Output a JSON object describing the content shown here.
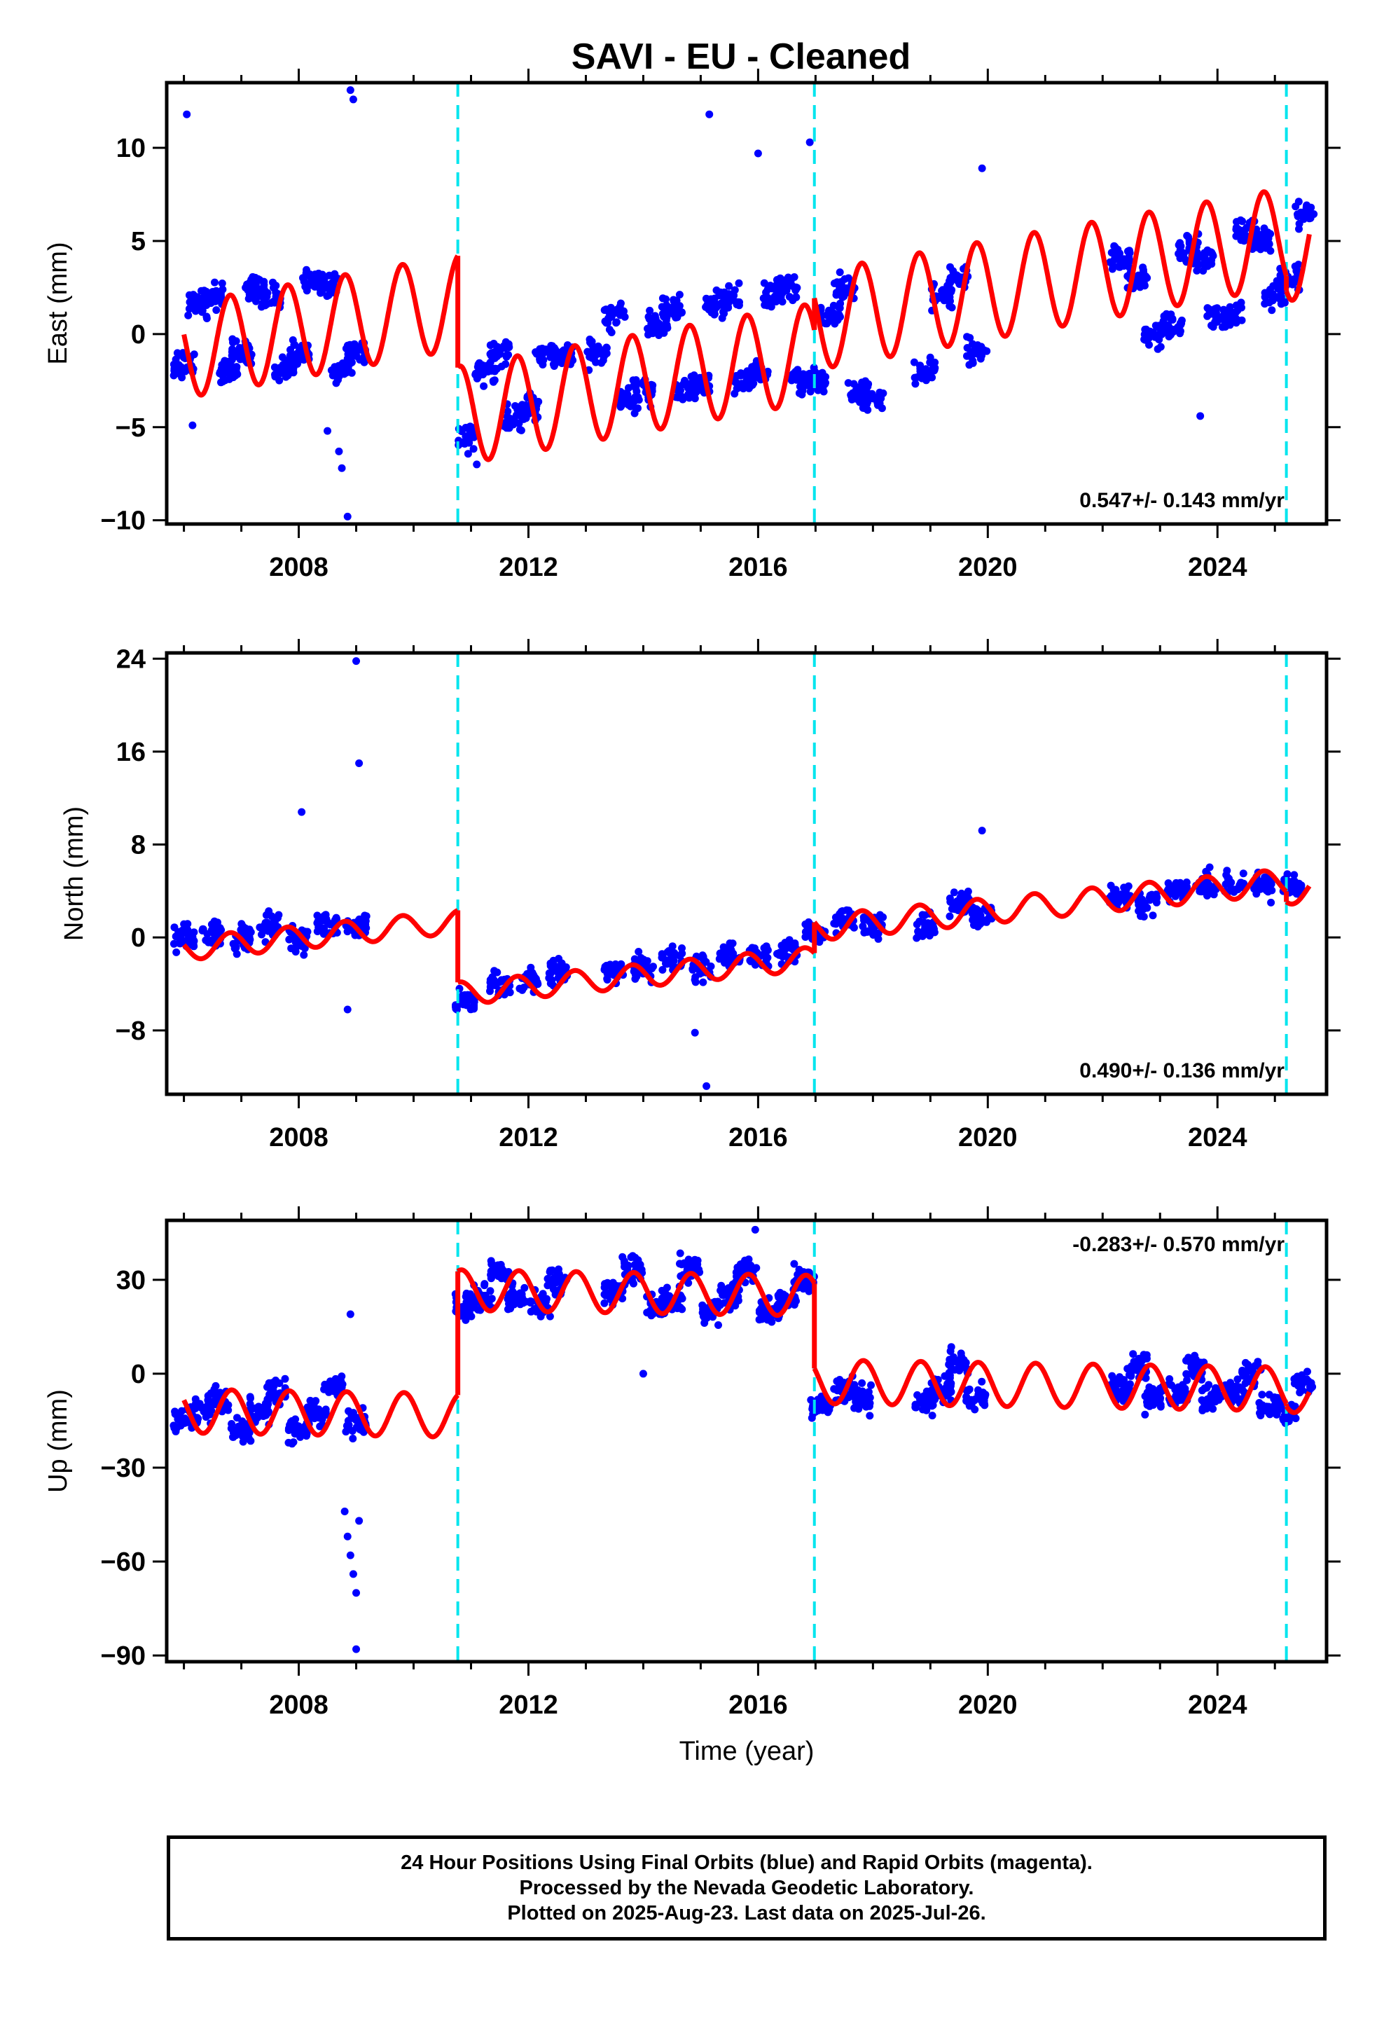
{
  "title": "SAVI  - EU - Cleaned",
  "footer": {
    "line1": "24 Hour Positions Using Final Orbits (blue) and Rapid Orbits (magenta).",
    "line2": "Processed by the Nevada Geodetic Laboratory.",
    "line3": "Plotted on 2025-Aug-23. Last data on 2025-Jul-26."
  },
  "colors": {
    "data": "#0000ff",
    "model": "#ff0000",
    "offsets": "#00e5ee",
    "axes": "#000000"
  },
  "chart_data": [
    {
      "type": "scatter",
      "xlabel": "",
      "ylabel": "East (mm)",
      "xlim": [
        2005.7,
        2025.9
      ],
      "ylim": [
        -10.2,
        13.5
      ],
      "xticks": [
        2008,
        2012,
        2016,
        2020,
        2024
      ],
      "yticks": [
        -10,
        -5,
        0,
        5,
        10
      ],
      "rate_text": "0.547+/- 0.143 mm/yr",
      "rate_position": "bottom-right",
      "offset_epochs": [
        2010.77,
        2016.98,
        2025.2
      ],
      "series": [
        {
          "role": "observations",
          "x": [
            2006.0,
            2006.25,
            2006.5,
            2006.75,
            2007.0,
            2007.25,
            2007.5,
            2007.75,
            2008.0,
            2008.25,
            2008.5,
            2008.75,
            2009.0,
            2010.9,
            2011.25,
            2011.5,
            2011.75,
            2012.0,
            2012.3,
            2012.6,
            2013.2,
            2013.5,
            2013.75,
            2014.0,
            2014.25,
            2014.5,
            2014.75,
            2015.0,
            2015.25,
            2015.5,
            2015.75,
            2016.0,
            2016.25,
            2016.5,
            2016.75,
            2017.0,
            2017.25,
            2017.5,
            2017.75,
            2018.0,
            2018.9,
            2019.2,
            2019.5,
            2019.8,
            2022.3,
            2022.6,
            2022.9,
            2023.2,
            2023.5,
            2023.75,
            2024.0,
            2024.25,
            2024.5,
            2024.75,
            2025.0,
            2025.25,
            2025.5
          ],
          "y": [
            -1.5,
            1.5,
            2.0,
            -2.0,
            -1.0,
            2.5,
            2.0,
            -2.0,
            -1.0,
            2.8,
            2.5,
            -2.0,
            -1.0,
            -5.5,
            -2.0,
            -1.0,
            -4.5,
            -4.0,
            -1.0,
            -1.0,
            -1.0,
            1.0,
            -3.5,
            -3.0,
            0.5,
            1.5,
            -3.0,
            -2.5,
            1.5,
            2.0,
            -2.5,
            -2.0,
            2.0,
            2.5,
            -2.5,
            -2.5,
            1.0,
            2.5,
            -3.0,
            -3.5,
            -2.0,
            2.0,
            3.0,
            -1.0,
            4.0,
            3.0,
            0.0,
            0.5,
            4.5,
            4.0,
            1.0,
            1.0,
            5.5,
            5.0,
            2.0,
            3.0,
            6.5
          ]
        },
        {
          "role": "outliers",
          "x": [
            2006.05,
            2006.15,
            2008.5,
            2008.7,
            2008.75,
            2008.85,
            2008.9,
            2008.95,
            2011.1,
            2015.15,
            2016.0,
            2016.9,
            2019.9,
            2023.7
          ],
          "y": [
            11.8,
            -4.9,
            -5.2,
            -6.3,
            -7.2,
            -9.8,
            13.1,
            12.6,
            -7.0,
            11.8,
            9.7,
            10.3,
            8.9,
            -4.4
          ]
        },
        {
          "role": "model",
          "start": 2006.0,
          "end": 2025.6,
          "segments": [
            {
              "x_range": [
                2006.0,
                2010.77
              ],
              "intercept_at_2008": 0.2,
              "trend_mm_per_yr": 0.547,
              "annual_amp": 2.55,
              "annual_phase_deg": -200.0
            },
            {
              "x_range": [
                2010.77,
                2016.98
              ],
              "intercept_at_2008": -5.9,
              "trend_mm_per_yr": 0.547,
              "annual_amp": 2.65,
              "annual_phase_deg": -200.0
            },
            {
              "x_range": [
                2016.98,
                2025.2
              ],
              "intercept_at_2008": -4.2,
              "trend_mm_per_yr": 0.547,
              "annual_amp": 2.65,
              "annual_phase_deg": -200.0
            },
            {
              "x_range": [
                2025.2,
                2025.6
              ],
              "intercept_at_2008": -5.0,
              "trend_mm_per_yr": 0.547,
              "annual_amp": 2.65,
              "annual_phase_deg": -200.0
            }
          ]
        }
      ]
    },
    {
      "type": "scatter",
      "xlabel": "",
      "ylabel": "North (mm)",
      "xlim": [
        2005.7,
        2025.9
      ],
      "ylim": [
        -13.5,
        24.5
      ],
      "xticks": [
        2008,
        2012,
        2016,
        2020,
        2024
      ],
      "yticks": [
        -8,
        0,
        8,
        16,
        24
      ],
      "rate_text": "0.490+/- 0.136 mm/yr",
      "rate_position": "bottom-right",
      "offset_epochs": [
        2010.77,
        2016.98,
        2025.2
      ],
      "series": [
        {
          "role": "observations",
          "x": [
            2006.0,
            2006.5,
            2007.0,
            2007.5,
            2008.0,
            2008.5,
            2009.0,
            2010.9,
            2011.5,
            2012.0,
            2012.5,
            2013.5,
            2014.0,
            2014.5,
            2015.0,
            2015.5,
            2016.0,
            2016.5,
            2017.0,
            2017.5,
            2018.0,
            2018.9,
            2019.5,
            2019.9,
            2022.3,
            2022.8,
            2023.3,
            2023.8,
            2024.3,
            2024.8,
            2025.3
          ],
          "y": [
            0.0,
            0.5,
            0.0,
            1.0,
            0.0,
            1.0,
            1.0,
            -5.5,
            -4.0,
            -3.5,
            -3.0,
            -3.0,
            -2.5,
            -2.0,
            -2.5,
            -1.5,
            -1.5,
            -1.0,
            0.5,
            1.5,
            1.0,
            1.0,
            3.0,
            2.0,
            3.5,
            3.0,
            4.0,
            4.5,
            4.5,
            4.5,
            4.5
          ]
        },
        {
          "role": "outliers",
          "x": [
            2008.05,
            2008.85,
            2009.0,
            2009.05,
            2014.9,
            2015.1,
            2019.9
          ],
          "y": [
            10.8,
            -6.2,
            23.8,
            15.0,
            -8.2,
            -12.8,
            9.2
          ]
        },
        {
          "role": "model",
          "start": 2006.0,
          "end": 2025.6,
          "segments": [
            {
              "x_range": [
                2006.0,
                2010.77
              ],
              "intercept_at_2008": 0.0,
              "trend_mm_per_yr": 0.49,
              "annual_amp": 1.0,
              "annual_phase_deg": -200.0
            },
            {
              "x_range": [
                2010.77,
                2016.98
              ],
              "intercept_at_2008": -6.2,
              "trend_mm_per_yr": 0.49,
              "annual_amp": 1.0,
              "annual_phase_deg": -200.0
            },
            {
              "x_range": [
                2016.98,
                2025.2
              ],
              "intercept_at_2008": -3.6,
              "trend_mm_per_yr": 0.49,
              "annual_amp": 1.1,
              "annual_phase_deg": -200.0
            },
            {
              "x_range": [
                2025.2,
                2025.6
              ],
              "intercept_at_2008": -4.5,
              "trend_mm_per_yr": 0.49,
              "annual_amp": 1.1,
              "annual_phase_deg": -200.0
            }
          ]
        }
      ]
    },
    {
      "type": "scatter",
      "xlabel": "Time (year)",
      "ylabel": "Up (mm)",
      "xlim": [
        2005.7,
        2025.9
      ],
      "ylim": [
        -92,
        49
      ],
      "xticks": [
        2008,
        2012,
        2016,
        2020,
        2024
      ],
      "yticks": [
        -90,
        -60,
        -30,
        0,
        30
      ],
      "rate_text": "-0.283+/- 0.570 mm/yr",
      "rate_position": "top-right",
      "offset_epochs": [
        2010.77,
        2016.98,
        2025.2
      ],
      "series": [
        {
          "role": "observations",
          "x": [
            2006.0,
            2006.3,
            2006.6,
            2007.0,
            2007.3,
            2007.6,
            2008.0,
            2008.3,
            2008.6,
            2009.0,
            2010.9,
            2011.2,
            2011.5,
            2011.8,
            2012.2,
            2012.5,
            2013.5,
            2013.8,
            2014.2,
            2014.5,
            2014.8,
            2015.2,
            2015.5,
            2015.8,
            2016.2,
            2016.5,
            2016.8,
            2017.1,
            2017.5,
            2017.8,
            2018.9,
            2019.2,
            2019.5,
            2019.8,
            2022.3,
            2022.6,
            2022.9,
            2023.3,
            2023.6,
            2023.9,
            2024.3,
            2024.6,
            2024.9,
            2025.2,
            2025.5
          ],
          "y": [
            -15,
            -12,
            -8,
            -18,
            -12,
            -6,
            -18,
            -12,
            -4,
            -16,
            22,
            25,
            32,
            24,
            22,
            30,
            26,
            33,
            22,
            23,
            34,
            20,
            25,
            33,
            20,
            23,
            30,
            -10,
            -5,
            -8,
            -8,
            -5,
            3,
            -8,
            -5,
            2,
            -8,
            -6,
            2,
            -8,
            -6,
            0,
            -10,
            -12,
            -3
          ]
        },
        {
          "role": "outliers",
          "x": [
            2008.8,
            2008.85,
            2008.9,
            2008.95,
            2009.0,
            2009.05,
            2008.9,
            2009.0,
            2015.95,
            2014.0
          ],
          "y": [
            -44,
            -52,
            -58,
            -64,
            -70,
            -47,
            19,
            -88,
            46,
            0
          ]
        },
        {
          "role": "model",
          "start": 2006.0,
          "end": 2025.6,
          "segments": [
            {
              "x_range": [
                2006.0,
                2010.77
              ],
              "intercept_at_2008": -12.5,
              "trend_mm_per_yr": -0.283,
              "annual_amp": 7.0,
              "annual_phase_deg": -210.0
            },
            {
              "x_range": [
                2010.77,
                2016.98
              ],
              "intercept_at_2008": 27.5,
              "trend_mm_per_yr": -0.283,
              "annual_amp": 6.5,
              "annual_phase_deg": -210.0
            },
            {
              "x_range": [
                2016.98,
                2025.2
              ],
              "intercept_at_2008": 0.0,
              "trend_mm_per_yr": -0.283,
              "annual_amp": 7.0,
              "annual_phase_deg": -210.0
            },
            {
              "x_range": [
                2025.2,
                2025.6
              ],
              "intercept_at_2008": -1.5,
              "trend_mm_per_yr": -0.283,
              "annual_amp": 6.0,
              "annual_phase_deg": -210.0
            }
          ]
        }
      ]
    }
  ]
}
